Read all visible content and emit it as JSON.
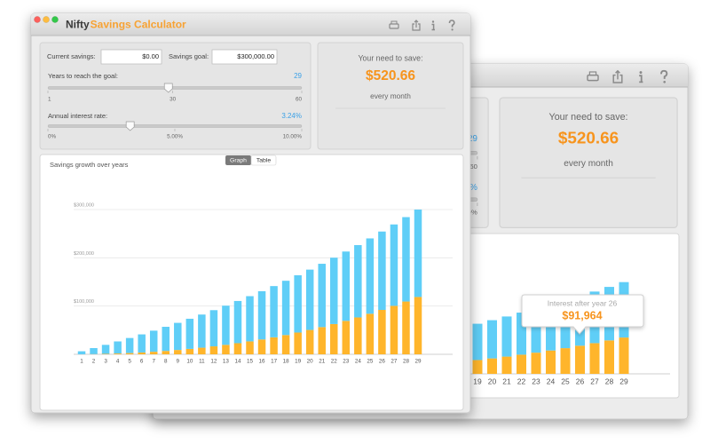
{
  "window": {
    "title_prefix": "Nifty",
    "title_accent": "Savings Calculator"
  },
  "inputs": {
    "current_savings": {
      "label": "Current savings:",
      "value": "$0.00"
    },
    "savings_goal": {
      "label": "Savings goal:",
      "value": "$300,000.00"
    },
    "years": {
      "label": "Years to reach the goal:",
      "value": 29,
      "ticks": [
        1,
        30,
        60
      ]
    },
    "interest_rate": {
      "label": "Annual interest rate:",
      "value": {
        "value": 3.24,
        "label": "3.24%"
      },
      "ticks": [
        {
          "value": 0,
          "label": "0%"
        },
        {
          "value": 5,
          "label": "5.00%"
        },
        {
          "value": 10,
          "label": "10.00%"
        }
      ]
    }
  },
  "result": {
    "heading": "Your need to save:",
    "amount": "$520.66",
    "period": "every month"
  },
  "chart_tabs": [
    "Graph",
    "Table"
  ],
  "tooltip": {
    "label": "Interest after year 26",
    "value": "$91,964"
  },
  "chart_data": {
    "type": "bar",
    "stacked": true,
    "title": "Savings growth over years",
    "categories": [
      1,
      2,
      3,
      4,
      5,
      6,
      7,
      8,
      9,
      10,
      11,
      12,
      13,
      14,
      15,
      16,
      17,
      18,
      19,
      20,
      21,
      22,
      23,
      24,
      25,
      26,
      27,
      28,
      29
    ],
    "series": [
      {
        "color": "#ffb52b",
        "values": [
          100,
          400,
          900,
          1700,
          2600,
          3800,
          5300,
          7000,
          9000,
          11200,
          13700,
          16500,
          19600,
          23000,
          26800,
          30800,
          35200,
          39900,
          45100,
          50500,
          56400,
          62700,
          69300,
          76400,
          84000,
          92000,
          100400,
          109400,
          118800
        ]
      },
      {
        "color": "#5fcef7",
        "values": [
          6200,
          12500,
          18700,
          25000,
          31200,
          37500,
          43700,
          50000,
          56200,
          62500,
          68700,
          75000,
          81200,
          87500,
          93700,
          100000,
          106200,
          112500,
          118700,
          125000,
          131200,
          137500,
          143700,
          149900,
          156200,
          162400,
          168700,
          174900,
          181200
        ]
      }
    ],
    "ylim": [
      0,
      320000
    ],
    "yticks": [
      {
        "value": 100000,
        "label": "$100,000"
      },
      {
        "value": 200000,
        "label": "$200,000"
      },
      {
        "value": 300000,
        "label": "$300,000"
      }
    ],
    "grid": true
  }
}
